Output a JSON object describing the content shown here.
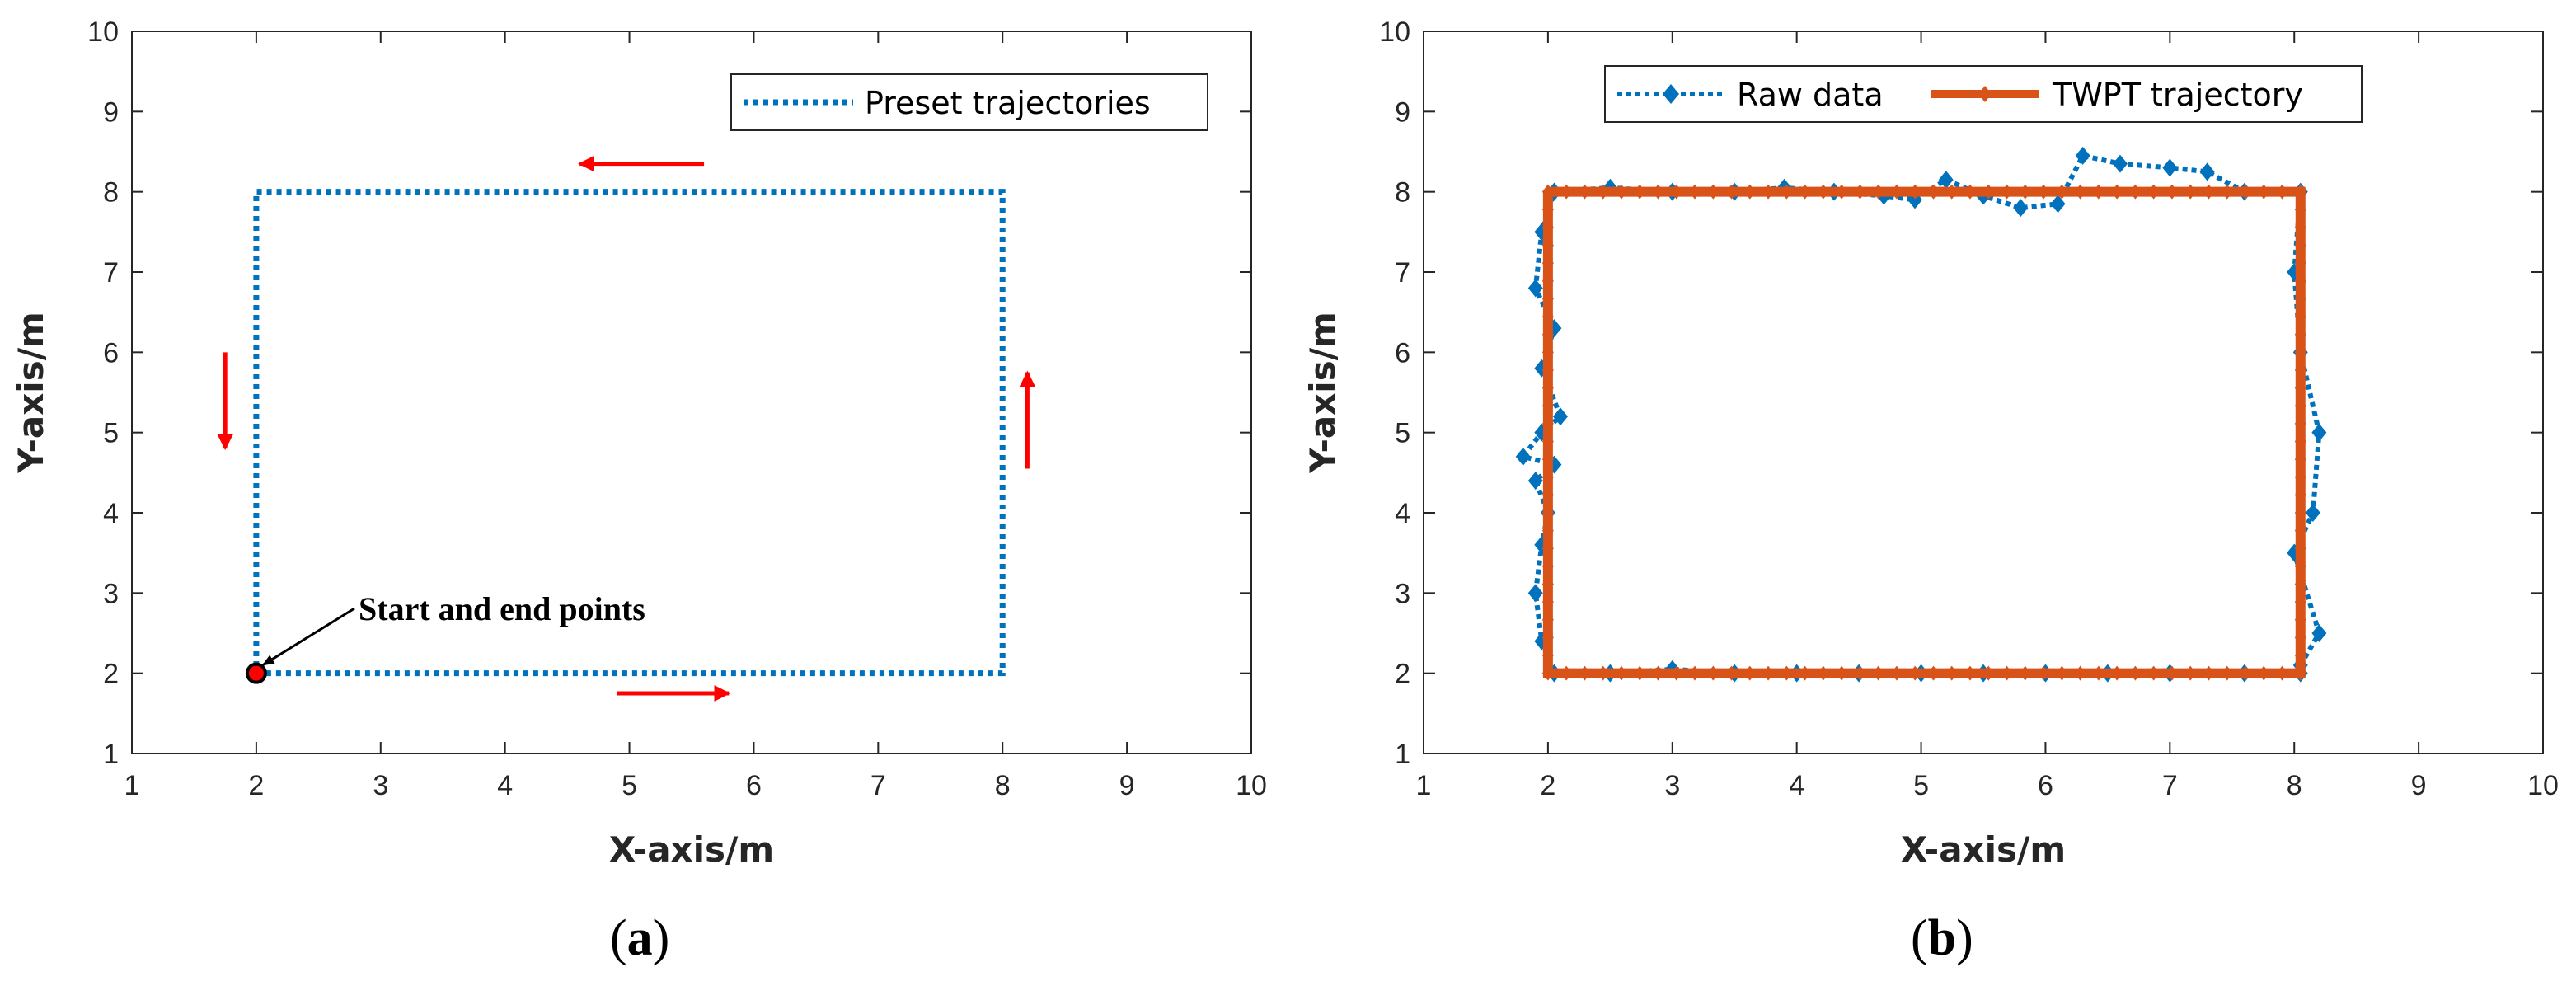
{
  "chart_data": [
    {
      "type": "line",
      "panel_label_open": "(",
      "panel_label_letter": "a",
      "panel_label_close": ")",
      "xlabel": "X-axis/m",
      "ylabel": "Y-axis/m",
      "xlim": [
        1,
        10
      ],
      "ylim": [
        1,
        10
      ],
      "xticks": [
        "1",
        "2",
        "3",
        "4",
        "5",
        "6",
        "7",
        "8",
        "9",
        "10"
      ],
      "yticks": [
        "1",
        "2",
        "3",
        "4",
        "5",
        "6",
        "7",
        "8",
        "9",
        "10"
      ],
      "grid": false,
      "legend_position": "top-right",
      "series": [
        {
          "name": "Preset trajectories",
          "style": "dotted",
          "color": "#0072BD",
          "x": [
            2,
            8,
            8,
            2,
            2
          ],
          "y": [
            2,
            2,
            8,
            8,
            2
          ]
        }
      ],
      "annotations": [
        {
          "text": "Start and end points",
          "point": [
            2,
            2
          ]
        }
      ],
      "direction_arrows": [
        {
          "from": [
            4.9,
            1.75
          ],
          "to": [
            5.8,
            1.75
          ],
          "direction": "right"
        },
        {
          "from": [
            8.2,
            4.55
          ],
          "to": [
            8.2,
            5.75
          ],
          "direction": "up"
        },
        {
          "from": [
            5.6,
            8.35
          ],
          "to": [
            4.6,
            8.35
          ],
          "direction": "left"
        },
        {
          "from": [
            1.75,
            6.0
          ],
          "to": [
            1.75,
            4.8
          ],
          "direction": "down"
        }
      ],
      "arrow_color": "#ff0000"
    },
    {
      "type": "line",
      "panel_label_open": "(",
      "panel_label_letter": "b",
      "panel_label_close": ")",
      "xlabel": "X-axis/m",
      "ylabel": "Y-axis/m",
      "xlim": [
        1,
        10
      ],
      "ylim": [
        1,
        10
      ],
      "xticks": [
        "1",
        "2",
        "3",
        "4",
        "5",
        "6",
        "7",
        "8",
        "9",
        "10"
      ],
      "yticks": [
        "1",
        "2",
        "3",
        "4",
        "5",
        "6",
        "7",
        "8",
        "9",
        "10"
      ],
      "grid": false,
      "legend_position": "top",
      "series": [
        {
          "name": "Raw data",
          "style": "dotted-diamond",
          "color": "#0072BD",
          "x": [
            2.05,
            2.5,
            3.0,
            3.5,
            3.9,
            4.3,
            4.7,
            4.95,
            5.2,
            5.5,
            5.8,
            6.1,
            6.3,
            6.6,
            7.0,
            7.3,
            7.6,
            8.05,
            8.0,
            8.05,
            8.2,
            8.15,
            8.0,
            8.2,
            8.05,
            8.05,
            7.6,
            7.0,
            6.5,
            6.0,
            5.5,
            5.0,
            4.5,
            4.0,
            3.5,
            3.0,
            2.5,
            2.05,
            1.95,
            1.9,
            1.95,
            2.0,
            1.9,
            2.05,
            1.8,
            1.95,
            2.1,
            1.95,
            2.05,
            1.9,
            1.95,
            2.05
          ],
          "y": [
            8.0,
            8.05,
            8.0,
            8.0,
            8.05,
            8.0,
            7.95,
            7.9,
            8.15,
            7.95,
            7.8,
            7.85,
            8.45,
            8.35,
            8.3,
            8.25,
            8.0,
            8.0,
            7.0,
            6.0,
            5.0,
            4.0,
            3.5,
            2.5,
            2.1,
            2.0,
            2.0,
            2.0,
            2.0,
            2.0,
            2.0,
            2.0,
            2.0,
            2.0,
            2.0,
            2.05,
            2.0,
            2.0,
            2.4,
            3.0,
            3.6,
            4.0,
            4.4,
            4.6,
            4.7,
            5.0,
            5.2,
            5.8,
            6.3,
            6.8,
            7.5,
            8.0
          ]
        },
        {
          "name": "TWPT trajectory",
          "style": "solid-diamond",
          "color": "#D95319",
          "x": [
            2.0,
            8.05,
            8.05,
            2.0,
            2.0
          ],
          "y": [
            8.0,
            8.0,
            2.0,
            2.0,
            8.0
          ]
        }
      ]
    }
  ]
}
